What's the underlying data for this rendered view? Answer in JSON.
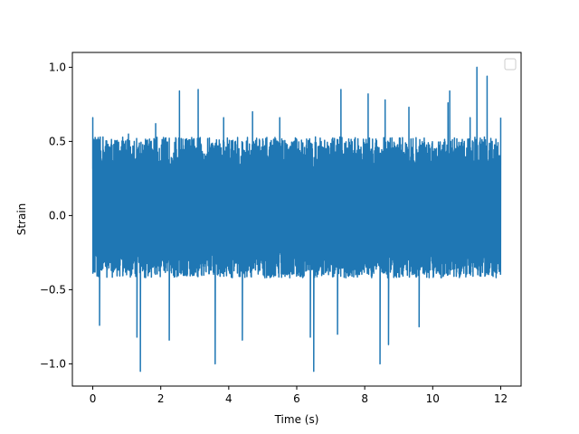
{
  "chart_data": {
    "type": "line",
    "title": "",
    "xlabel": "Time (s)",
    "ylabel": "Strain",
    "xlim": [
      -0.6,
      12.6
    ],
    "ylim": [
      -1.15,
      1.1
    ],
    "x_ticks": [
      0,
      2,
      4,
      6,
      8,
      10,
      12
    ],
    "x_tick_labels": [
      "0",
      "2",
      "4",
      "6",
      "8",
      "10",
      "12"
    ],
    "y_ticks": [
      -1.0,
      -0.5,
      0.0,
      0.5,
      1.0
    ],
    "y_tick_labels": [
      "−1.0",
      "−0.5",
      "0.0",
      "0.5",
      "1.0"
    ],
    "grid": false,
    "legend": {
      "placement": "top-right",
      "entries": []
    },
    "series": [
      {
        "color": "#1f77b4",
        "x_range": [
          0,
          12
        ],
        "envelope": {
          "typical_max": 0.53,
          "typical_min": -0.42,
          "notable_peaks": [
            {
              "x": 0.0,
              "y": 0.66
            },
            {
              "x": 0.3,
              "y": 0.53
            },
            {
              "x": 1.05,
              "y": 0.55
            },
            {
              "x": 1.85,
              "y": 0.62
            },
            {
              "x": 2.55,
              "y": 0.84
            },
            {
              "x": 3.1,
              "y": 0.85
            },
            {
              "x": 3.85,
              "y": 0.66
            },
            {
              "x": 4.7,
              "y": 0.7
            },
            {
              "x": 5.5,
              "y": 0.66
            },
            {
              "x": 7.3,
              "y": 0.85
            },
            {
              "x": 8.1,
              "y": 0.82
            },
            {
              "x": 8.6,
              "y": 0.78
            },
            {
              "x": 9.3,
              "y": 0.73
            },
            {
              "x": 10.45,
              "y": 0.76
            },
            {
              "x": 10.5,
              "y": 0.84
            },
            {
              "x": 11.1,
              "y": 0.66
            },
            {
              "x": 11.3,
              "y": 1.0
            },
            {
              "x": 11.6,
              "y": 0.94
            },
            {
              "x": 12.0,
              "y": 0.66
            }
          ],
          "notable_troughs": [
            {
              "x": 0.2,
              "y": -0.74
            },
            {
              "x": 1.3,
              "y": -0.82
            },
            {
              "x": 1.4,
              "y": -1.05
            },
            {
              "x": 2.25,
              "y": -0.84
            },
            {
              "x": 3.6,
              "y": -1.0
            },
            {
              "x": 4.4,
              "y": -0.84
            },
            {
              "x": 6.4,
              "y": -0.82
            },
            {
              "x": 6.5,
              "y": -1.05
            },
            {
              "x": 7.2,
              "y": -0.8
            },
            {
              "x": 8.45,
              "y": -1.0
            },
            {
              "x": 8.7,
              "y": -0.87
            },
            {
              "x": 9.6,
              "y": -0.75
            }
          ]
        }
      }
    ]
  }
}
